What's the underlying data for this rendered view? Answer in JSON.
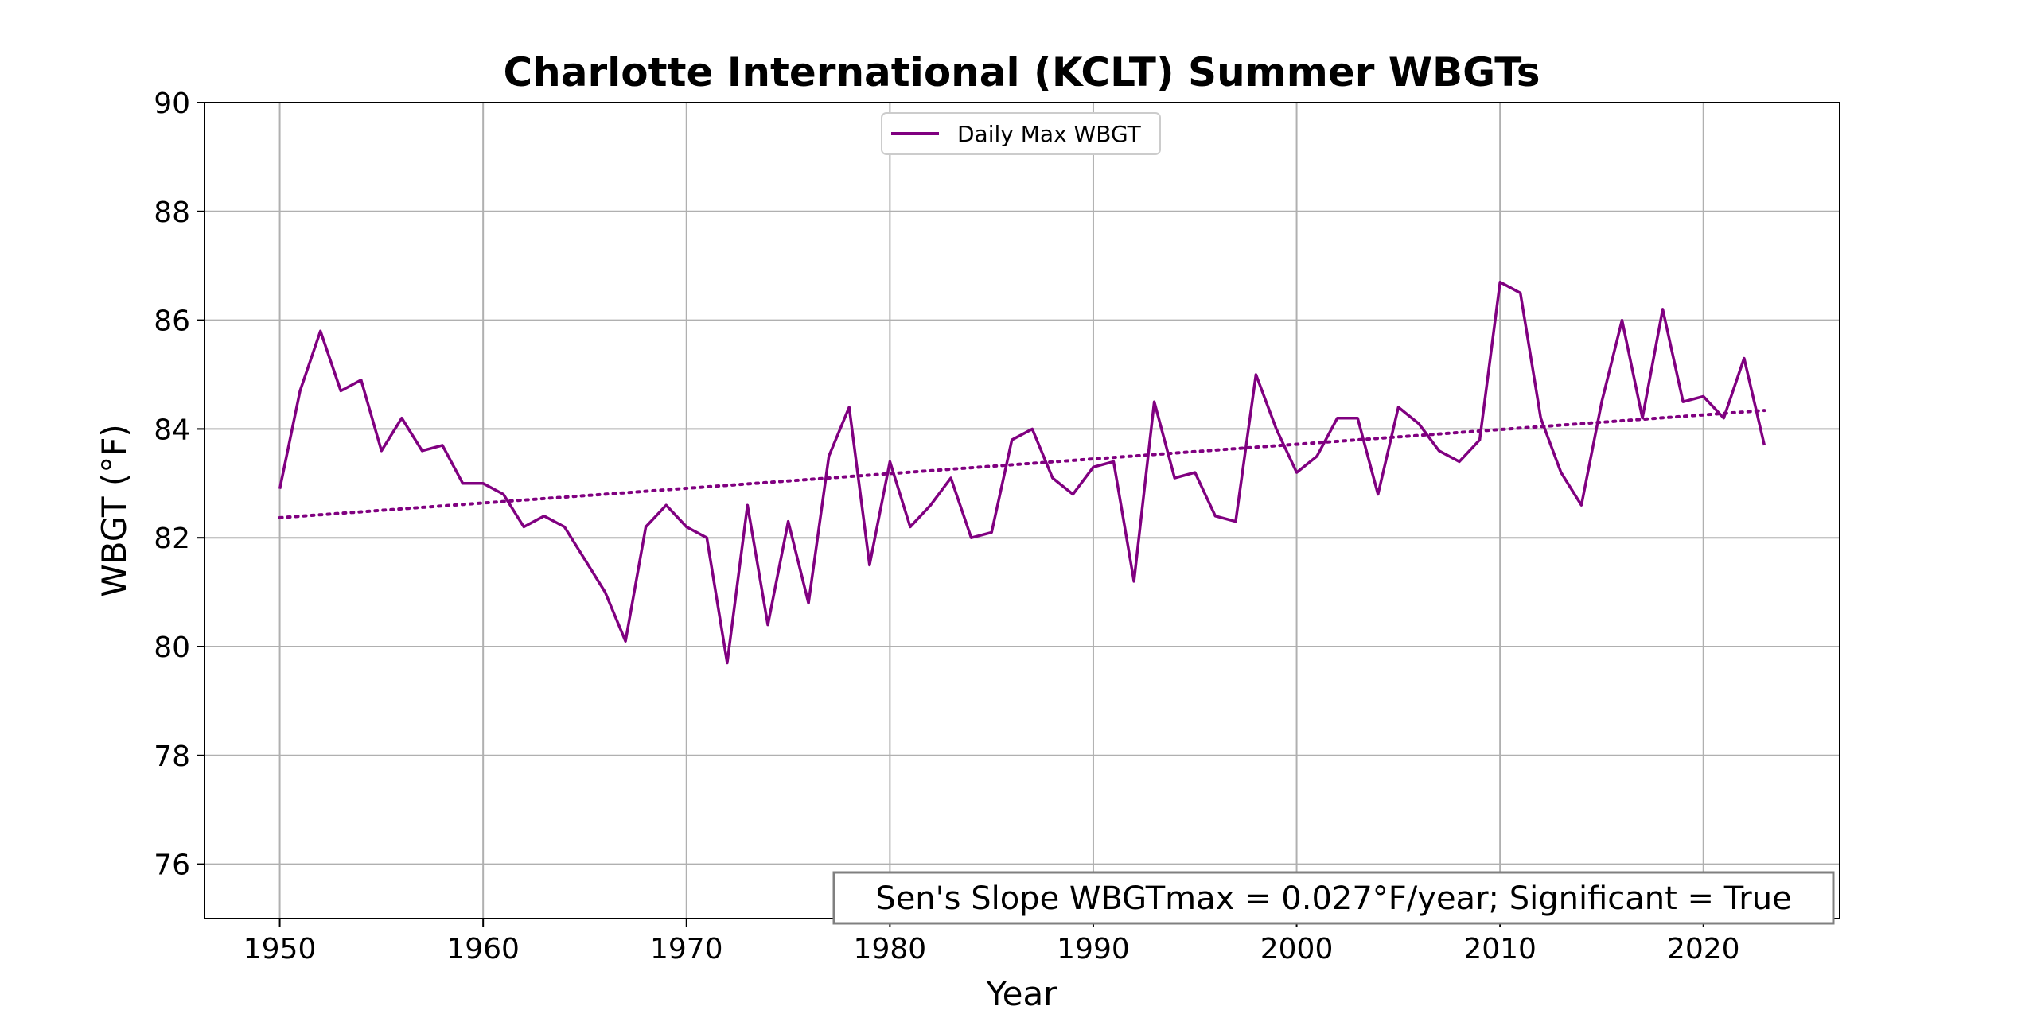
{
  "chart_data": {
    "type": "line",
    "title": "Charlotte International (KCLT) Summer WBGTs",
    "xlabel": "Year",
    "ylabel": "WBGT (°F)",
    "xlim": [
      1946.3,
      2026.7
    ],
    "ylim": [
      75,
      90
    ],
    "xticks": [
      1950,
      1960,
      1970,
      1980,
      1990,
      2000,
      2010,
      2020
    ],
    "yticks": [
      76,
      78,
      80,
      82,
      84,
      86,
      88,
      90
    ],
    "grid": true,
    "legend_position": "top-center",
    "series": [
      {
        "name": "Daily Max WBGT",
        "color": "#800080",
        "style": "solid",
        "x": [
          1950,
          1951,
          1952,
          1953,
          1954,
          1955,
          1956,
          1957,
          1958,
          1959,
          1960,
          1961,
          1962,
          1963,
          1964,
          1965,
          1966,
          1967,
          1968,
          1969,
          1970,
          1971,
          1972,
          1973,
          1974,
          1975,
          1976,
          1977,
          1978,
          1979,
          1980,
          1981,
          1982,
          1983,
          1984,
          1985,
          1986,
          1987,
          1988,
          1989,
          1990,
          1991,
          1992,
          1993,
          1994,
          1995,
          1996,
          1997,
          1998,
          1999,
          2000,
          2001,
          2002,
          2003,
          2004,
          2005,
          2006,
          2007,
          2008,
          2009,
          2010,
          2011,
          2012,
          2013,
          2014,
          2015,
          2016,
          2017,
          2018,
          2019,
          2020,
          2021,
          2022,
          2023
        ],
        "values": [
          82.9,
          84.7,
          85.8,
          84.7,
          84.9,
          83.6,
          84.2,
          83.6,
          83.7,
          83.0,
          83.0,
          82.8,
          82.2,
          82.4,
          82.2,
          81.6,
          81.0,
          80.1,
          82.2,
          82.6,
          82.2,
          82.0,
          79.7,
          82.6,
          80.4,
          82.3,
          80.8,
          83.5,
          84.4,
          81.5,
          83.4,
          82.2,
          82.6,
          83.1,
          82.0,
          82.1,
          83.8,
          84.0,
          83.1,
          82.8,
          83.3,
          83.4,
          81.2,
          84.5,
          83.1,
          83.2,
          82.4,
          82.3,
          85.0,
          84.0,
          83.2,
          83.5,
          84.2,
          84.2,
          82.8,
          84.4,
          84.1,
          83.6,
          83.4,
          83.8,
          86.7,
          86.5,
          84.2,
          83.2,
          82.6,
          84.5,
          86.0,
          84.2,
          86.2,
          84.5,
          84.6,
          84.2,
          85.3,
          83.7
        ]
      },
      {
        "name": "",
        "color": "#800080",
        "style": "dotted",
        "x": [
          1950,
          2023
        ],
        "values": [
          82.37,
          84.34
        ]
      }
    ],
    "annotation": "Sen's Slope WBGTmax = 0.027°F/year; Significant = True"
  }
}
